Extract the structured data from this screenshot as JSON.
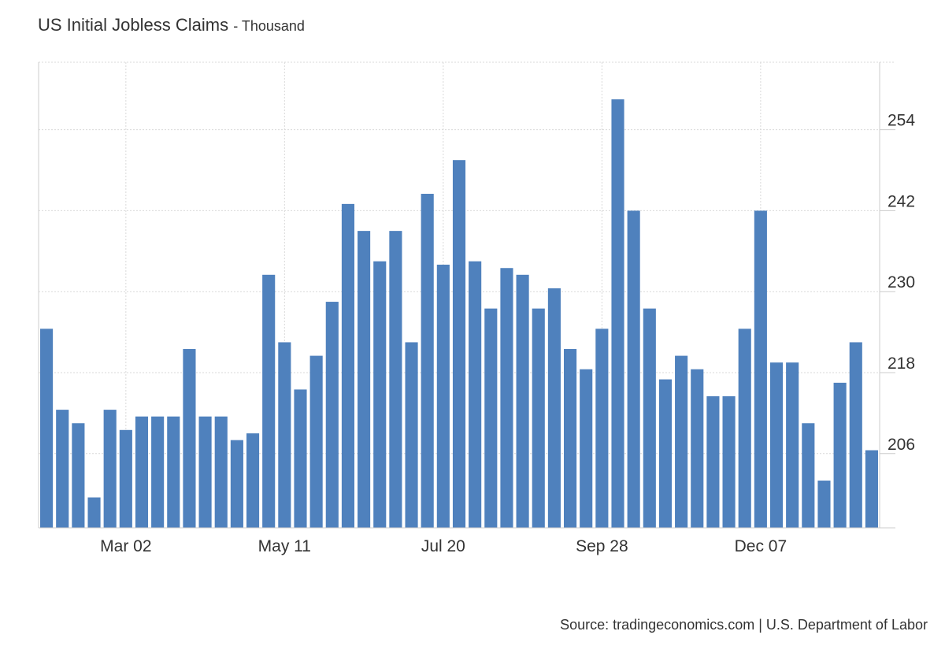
{
  "title": "US Initial Jobless Claims",
  "subtitle": "- Thousand",
  "source": "Source: tradingeconomics.com | U.S. Department of Labor",
  "colors": {
    "bar": "#4f81bd",
    "grid": "#d9d9d9",
    "axis": "#cccccc",
    "text": "#333333"
  },
  "chart_data": {
    "type": "bar",
    "title": "US Initial Jobless Claims",
    "subtitle": "Thousand",
    "ylim": [
      195,
      264
    ],
    "yticks": [
      206,
      218,
      230,
      242,
      254
    ],
    "xtick_labels": [
      {
        "label": "Mar 02",
        "index": 5
      },
      {
        "label": "May 11",
        "index": 15
      },
      {
        "label": "Jul 20",
        "index": 25
      },
      {
        "label": "Sep 28",
        "index": 35
      },
      {
        "label": "Dec 07",
        "index": 45
      }
    ],
    "grid": true,
    "y_axis_position": "right",
    "values": [
      224.5,
      212.5,
      210.5,
      199.5,
      212.5,
      209.5,
      211.5,
      211.5,
      211.5,
      221.5,
      211.5,
      211.5,
      208.0,
      209.0,
      232.5,
      222.5,
      215.5,
      220.5,
      228.5,
      243.0,
      239.0,
      234.5,
      239.0,
      222.5,
      244.5,
      234.0,
      249.5,
      234.5,
      227.5,
      233.5,
      232.5,
      227.5,
      230.5,
      221.5,
      218.5,
      224.5,
      258.5,
      242.0,
      227.5,
      217.0,
      220.5,
      218.5,
      214.5,
      214.5,
      224.5,
      242.0,
      219.5,
      219.5,
      210.5,
      202.0,
      216.5,
      222.5,
      206.5
    ]
  }
}
